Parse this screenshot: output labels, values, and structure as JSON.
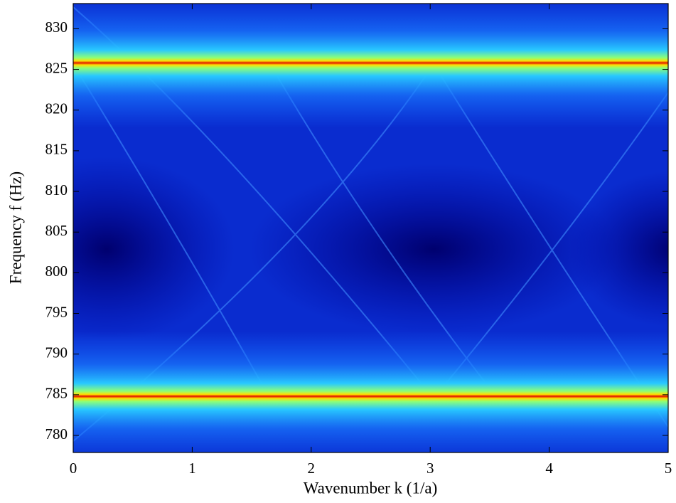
{
  "chart_data": {
    "type": "heatmap",
    "xlabel": "Wavenumber k (1/a)",
    "ylabel": "Frequency f (Hz)",
    "xlim": [
      0,
      5
    ],
    "xticks": [
      0,
      1,
      2,
      3,
      4,
      5
    ],
    "ylim": [
      777.9,
      833.1
    ],
    "yticks": [
      780,
      785,
      790,
      795,
      800,
      805,
      810,
      815,
      820,
      825,
      830
    ],
    "ridges": [
      784.8,
      825.8
    ]
  }
}
